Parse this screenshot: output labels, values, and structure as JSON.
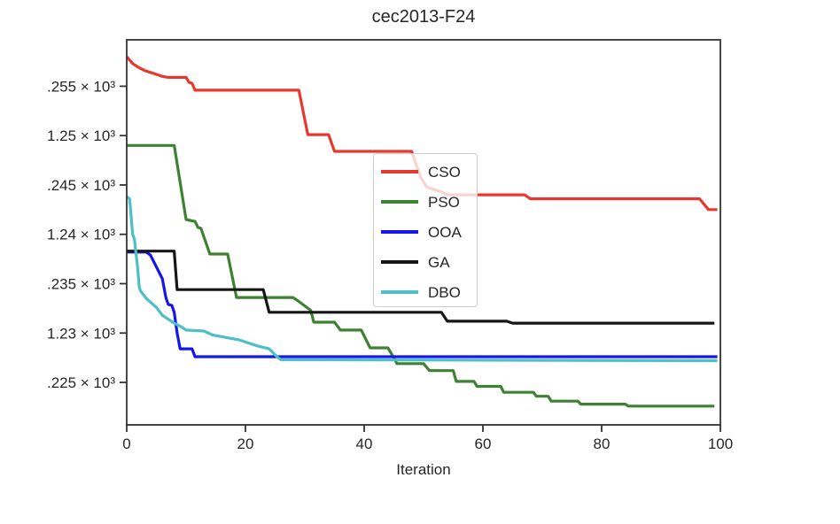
{
  "chart_data": {
    "type": "line",
    "title": "cec2013-F24",
    "xlabel": "Iteration",
    "ylabel": "",
    "grid": false,
    "xlim": [
      0,
      100
    ],
    "ylim": [
      1220.7,
      1259.7
    ],
    "xticks": {
      "values": [
        0,
        20,
        40,
        60,
        80,
        100
      ],
      "labels": [
        "0",
        "20",
        "40",
        "60",
        "80",
        "100"
      ]
    },
    "yticks": {
      "values": [
        1255,
        1250,
        1245,
        1240,
        1235,
        1230,
        1225
      ],
      "labels": [
        ".255 × 10³",
        "1.25 × 10³",
        ".245 × 10³",
        "1.24 × 10³",
        ".235 × 10³",
        "1.23 × 10³",
        ".225 × 10³"
      ]
    },
    "legend": {
      "position": "center",
      "entries": [
        "CSO",
        "PSO",
        "OOA",
        "GA",
        "DBO"
      ]
    },
    "axis_color": "#333333",
    "text_color": "#262626",
    "series": [
      {
        "name": "CSO",
        "color": "#e5382e",
        "points": [
          [
            0,
            1258.0
          ],
          [
            1,
            1257.3
          ],
          [
            2,
            1256.9
          ],
          [
            3,
            1256.6
          ],
          [
            4,
            1256.4
          ],
          [
            5,
            1256.2
          ],
          [
            6,
            1256.0
          ],
          [
            7,
            1255.9
          ],
          [
            10,
            1255.9
          ],
          [
            10.5,
            1255.4
          ],
          [
            11,
            1255.3
          ],
          [
            11.5,
            1254.6
          ],
          [
            29,
            1254.6
          ],
          [
            30.5,
            1250.1
          ],
          [
            34,
            1250.1
          ],
          [
            35,
            1248.4
          ],
          [
            48,
            1248.4
          ],
          [
            49.5,
            1245.8
          ],
          [
            50.5,
            1244.8
          ],
          [
            53,
            1244.3
          ],
          [
            54,
            1244.0
          ],
          [
            67,
            1244.0
          ],
          [
            68,
            1243.6
          ],
          [
            96.5,
            1243.6
          ],
          [
            98,
            1242.5
          ],
          [
            99.5,
            1242.5
          ]
        ]
      },
      {
        "name": "PSO",
        "color": "#3d8232",
        "points": [
          [
            0,
            1249.0
          ],
          [
            8,
            1249.0
          ],
          [
            10,
            1241.5
          ],
          [
            11.5,
            1241.3
          ],
          [
            12,
            1240.7
          ],
          [
            12.5,
            1240.6
          ],
          [
            14,
            1238.0
          ],
          [
            17,
            1238.0
          ],
          [
            18.5,
            1233.6
          ],
          [
            28,
            1233.6
          ],
          [
            29,
            1233.2
          ],
          [
            31,
            1232.3
          ],
          [
            31.5,
            1231.1
          ],
          [
            35,
            1231.1
          ],
          [
            36,
            1230.3
          ],
          [
            39.5,
            1230.3
          ],
          [
            41,
            1228.5
          ],
          [
            44,
            1228.5
          ],
          [
            45,
            1227.5
          ],
          [
            45.5,
            1226.9
          ],
          [
            50,
            1226.9
          ],
          [
            51,
            1226.2
          ],
          [
            55,
            1226.2
          ],
          [
            55.5,
            1225.1
          ],
          [
            58.5,
            1225.1
          ],
          [
            59,
            1224.6
          ],
          [
            63,
            1224.6
          ],
          [
            63.5,
            1224.0
          ],
          [
            68.5,
            1224.0
          ],
          [
            69,
            1223.6
          ],
          [
            71,
            1223.6
          ],
          [
            71.5,
            1223.1
          ],
          [
            76,
            1223.1
          ],
          [
            76.5,
            1222.8
          ],
          [
            84,
            1222.8
          ],
          [
            84.5,
            1222.6
          ],
          [
            99,
            1222.6
          ]
        ]
      },
      {
        "name": "OOA",
        "color": "#1515ee",
        "points": [
          [
            0,
            1238.2
          ],
          [
            3.3,
            1238.2
          ],
          [
            4,
            1237.9
          ],
          [
            6,
            1235.5
          ],
          [
            6.6,
            1233.6
          ],
          [
            7,
            1232.9
          ],
          [
            7.6,
            1232.8
          ],
          [
            8,
            1232.1
          ],
          [
            8.5,
            1230.0
          ],
          [
            9,
            1228.4
          ],
          [
            11,
            1228.4
          ],
          [
            11.5,
            1227.6
          ],
          [
            99.5,
            1227.6
          ]
        ]
      },
      {
        "name": "GA",
        "color": "#161616",
        "points": [
          [
            0,
            1238.3
          ],
          [
            8,
            1238.3
          ],
          [
            8.5,
            1234.4
          ],
          [
            23,
            1234.4
          ],
          [
            24,
            1232.1
          ],
          [
            53,
            1232.1
          ],
          [
            54,
            1231.2
          ],
          [
            64,
            1231.2
          ],
          [
            65,
            1231.0
          ],
          [
            99,
            1231.0
          ]
        ]
      },
      {
        "name": "DBO",
        "color": "#4dbfc7",
        "points": [
          [
            0,
            1243.8
          ],
          [
            0.5,
            1243.6
          ],
          [
            1,
            1240.0
          ],
          [
            1.3,
            1239.5
          ],
          [
            1.8,
            1236.8
          ],
          [
            2.1,
            1234.7
          ],
          [
            2.3,
            1234.3
          ],
          [
            3.3,
            1233.5
          ],
          [
            5,
            1232.6
          ],
          [
            6,
            1231.8
          ],
          [
            8,
            1231.0
          ],
          [
            9,
            1230.7
          ],
          [
            10,
            1230.3
          ],
          [
            13,
            1230.2
          ],
          [
            14.5,
            1229.8
          ],
          [
            19,
            1229.3
          ],
          [
            22,
            1228.7
          ],
          [
            24,
            1228.4
          ],
          [
            25.5,
            1227.5
          ],
          [
            26,
            1227.3
          ],
          [
            99.5,
            1227.2
          ]
        ]
      }
    ]
  }
}
